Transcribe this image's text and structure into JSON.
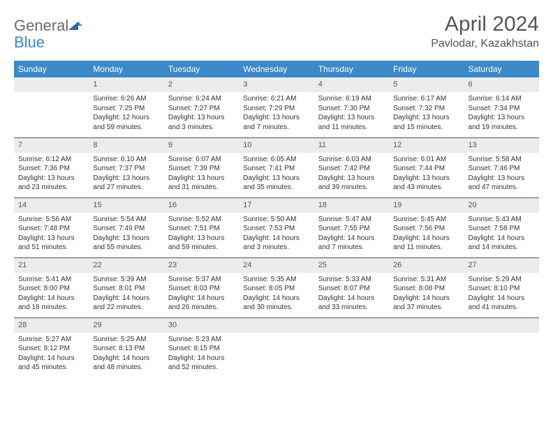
{
  "logo": {
    "word1": "General",
    "word2": "Blue"
  },
  "title": "April 2024",
  "location": "Pavlodar, Kazakhstan",
  "colors": {
    "header_bg": "#3b89c9",
    "header_text": "#ffffff",
    "daynum_bg": "#ececec",
    "row_border": "#3b5a7a",
    "logo_gray": "#6b6b6b",
    "logo_blue": "#3b89c9",
    "body_text": "#333333",
    "background": "#ffffff"
  },
  "weekdays": [
    "Sunday",
    "Monday",
    "Tuesday",
    "Wednesday",
    "Thursday",
    "Friday",
    "Saturday"
  ],
  "weeks": [
    [
      {
        "blank": true
      },
      {
        "n": "1",
        "sr": "Sunrise: 6:26 AM",
        "ss": "Sunset: 7:25 PM",
        "dl1": "Daylight: 12 hours",
        "dl2": "and 59 minutes."
      },
      {
        "n": "2",
        "sr": "Sunrise: 6:24 AM",
        "ss": "Sunset: 7:27 PM",
        "dl1": "Daylight: 13 hours",
        "dl2": "and 3 minutes."
      },
      {
        "n": "3",
        "sr": "Sunrise: 6:21 AM",
        "ss": "Sunset: 7:29 PM",
        "dl1": "Daylight: 13 hours",
        "dl2": "and 7 minutes."
      },
      {
        "n": "4",
        "sr": "Sunrise: 6:19 AM",
        "ss": "Sunset: 7:30 PM",
        "dl1": "Daylight: 13 hours",
        "dl2": "and 11 minutes."
      },
      {
        "n": "5",
        "sr": "Sunrise: 6:17 AM",
        "ss": "Sunset: 7:32 PM",
        "dl1": "Daylight: 13 hours",
        "dl2": "and 15 minutes."
      },
      {
        "n": "6",
        "sr": "Sunrise: 6:14 AM",
        "ss": "Sunset: 7:34 PM",
        "dl1": "Daylight: 13 hours",
        "dl2": "and 19 minutes."
      }
    ],
    [
      {
        "n": "7",
        "sr": "Sunrise: 6:12 AM",
        "ss": "Sunset: 7:36 PM",
        "dl1": "Daylight: 13 hours",
        "dl2": "and 23 minutes."
      },
      {
        "n": "8",
        "sr": "Sunrise: 6:10 AM",
        "ss": "Sunset: 7:37 PM",
        "dl1": "Daylight: 13 hours",
        "dl2": "and 27 minutes."
      },
      {
        "n": "9",
        "sr": "Sunrise: 6:07 AM",
        "ss": "Sunset: 7:39 PM",
        "dl1": "Daylight: 13 hours",
        "dl2": "and 31 minutes."
      },
      {
        "n": "10",
        "sr": "Sunrise: 6:05 AM",
        "ss": "Sunset: 7:41 PM",
        "dl1": "Daylight: 13 hours",
        "dl2": "and 35 minutes."
      },
      {
        "n": "11",
        "sr": "Sunrise: 6:03 AM",
        "ss": "Sunset: 7:42 PM",
        "dl1": "Daylight: 13 hours",
        "dl2": "and 39 minutes."
      },
      {
        "n": "12",
        "sr": "Sunrise: 6:01 AM",
        "ss": "Sunset: 7:44 PM",
        "dl1": "Daylight: 13 hours",
        "dl2": "and 43 minutes."
      },
      {
        "n": "13",
        "sr": "Sunrise: 5:58 AM",
        "ss": "Sunset: 7:46 PM",
        "dl1": "Daylight: 13 hours",
        "dl2": "and 47 minutes."
      }
    ],
    [
      {
        "n": "14",
        "sr": "Sunrise: 5:56 AM",
        "ss": "Sunset: 7:48 PM",
        "dl1": "Daylight: 13 hours",
        "dl2": "and 51 minutes."
      },
      {
        "n": "15",
        "sr": "Sunrise: 5:54 AM",
        "ss": "Sunset: 7:49 PM",
        "dl1": "Daylight: 13 hours",
        "dl2": "and 55 minutes."
      },
      {
        "n": "16",
        "sr": "Sunrise: 5:52 AM",
        "ss": "Sunset: 7:51 PM",
        "dl1": "Daylight: 13 hours",
        "dl2": "and 59 minutes."
      },
      {
        "n": "17",
        "sr": "Sunrise: 5:50 AM",
        "ss": "Sunset: 7:53 PM",
        "dl1": "Daylight: 14 hours",
        "dl2": "and 3 minutes."
      },
      {
        "n": "18",
        "sr": "Sunrise: 5:47 AM",
        "ss": "Sunset: 7:55 PM",
        "dl1": "Daylight: 14 hours",
        "dl2": "and 7 minutes."
      },
      {
        "n": "19",
        "sr": "Sunrise: 5:45 AM",
        "ss": "Sunset: 7:56 PM",
        "dl1": "Daylight: 14 hours",
        "dl2": "and 11 minutes."
      },
      {
        "n": "20",
        "sr": "Sunrise: 5:43 AM",
        "ss": "Sunset: 7:58 PM",
        "dl1": "Daylight: 14 hours",
        "dl2": "and 14 minutes."
      }
    ],
    [
      {
        "n": "21",
        "sr": "Sunrise: 5:41 AM",
        "ss": "Sunset: 8:00 PM",
        "dl1": "Daylight: 14 hours",
        "dl2": "and 18 minutes."
      },
      {
        "n": "22",
        "sr": "Sunrise: 5:39 AM",
        "ss": "Sunset: 8:01 PM",
        "dl1": "Daylight: 14 hours",
        "dl2": "and 22 minutes."
      },
      {
        "n": "23",
        "sr": "Sunrise: 5:37 AM",
        "ss": "Sunset: 8:03 PM",
        "dl1": "Daylight: 14 hours",
        "dl2": "and 26 minutes."
      },
      {
        "n": "24",
        "sr": "Sunrise: 5:35 AM",
        "ss": "Sunset: 8:05 PM",
        "dl1": "Daylight: 14 hours",
        "dl2": "and 30 minutes."
      },
      {
        "n": "25",
        "sr": "Sunrise: 5:33 AM",
        "ss": "Sunset: 8:07 PM",
        "dl1": "Daylight: 14 hours",
        "dl2": "and 33 minutes."
      },
      {
        "n": "26",
        "sr": "Sunrise: 5:31 AM",
        "ss": "Sunset: 8:08 PM",
        "dl1": "Daylight: 14 hours",
        "dl2": "and 37 minutes."
      },
      {
        "n": "27",
        "sr": "Sunrise: 5:29 AM",
        "ss": "Sunset: 8:10 PM",
        "dl1": "Daylight: 14 hours",
        "dl2": "and 41 minutes."
      }
    ],
    [
      {
        "n": "28",
        "sr": "Sunrise: 5:27 AM",
        "ss": "Sunset: 8:12 PM",
        "dl1": "Daylight: 14 hours",
        "dl2": "and 45 minutes."
      },
      {
        "n": "29",
        "sr": "Sunrise: 5:25 AM",
        "ss": "Sunset: 8:13 PM",
        "dl1": "Daylight: 14 hours",
        "dl2": "and 48 minutes."
      },
      {
        "n": "30",
        "sr": "Sunrise: 5:23 AM",
        "ss": "Sunset: 8:15 PM",
        "dl1": "Daylight: 14 hours",
        "dl2": "and 52 minutes."
      },
      {
        "blank": true
      },
      {
        "blank": true
      },
      {
        "blank": true
      },
      {
        "blank": true
      }
    ]
  ]
}
